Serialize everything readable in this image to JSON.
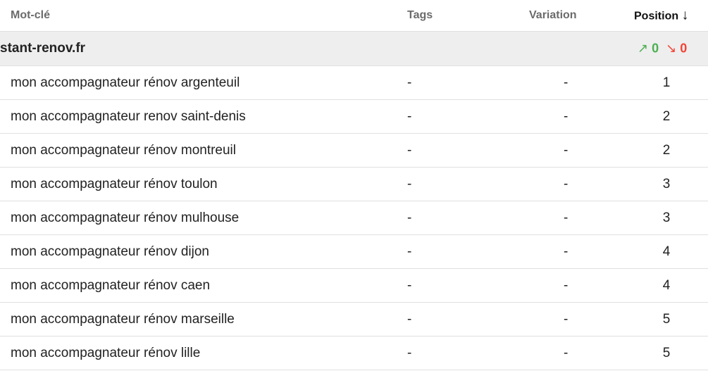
{
  "header": {
    "keyword": "Mot-clé",
    "tags": "Tags",
    "variation": "Variation",
    "position": "Position",
    "sort_icon": "↓"
  },
  "group": {
    "name": "stant-renov.fr",
    "up_icon": "↗",
    "up_count": "0",
    "down_icon": "↘",
    "down_count": "0",
    "colors": {
      "up": "#4caf50",
      "down": "#f44336"
    }
  },
  "rows": [
    {
      "keyword": "mon accompagnateur rénov argenteuil",
      "tags": "-",
      "variation": "-",
      "position": "1"
    },
    {
      "keyword": "mon accompagnateur renov saint-denis",
      "tags": "-",
      "variation": "-",
      "position": "2"
    },
    {
      "keyword": "mon accompagnateur rénov montreuil",
      "tags": "-",
      "variation": "-",
      "position": "2"
    },
    {
      "keyword": "mon accompagnateur rénov toulon",
      "tags": "-",
      "variation": "-",
      "position": "3"
    },
    {
      "keyword": "mon accompagnateur rénov mulhouse",
      "tags": "-",
      "variation": "-",
      "position": "3"
    },
    {
      "keyword": "mon accompagnateur rénov dijon",
      "tags": "-",
      "variation": "-",
      "position": "4"
    },
    {
      "keyword": "mon accompagnateur rénov caen",
      "tags": "-",
      "variation": "-",
      "position": "4"
    },
    {
      "keyword": "mon accompagnateur rénov marseille",
      "tags": "-",
      "variation": "-",
      "position": "5"
    },
    {
      "keyword": "mon accompagnateur rénov lille",
      "tags": "-",
      "variation": "-",
      "position": "5"
    }
  ]
}
